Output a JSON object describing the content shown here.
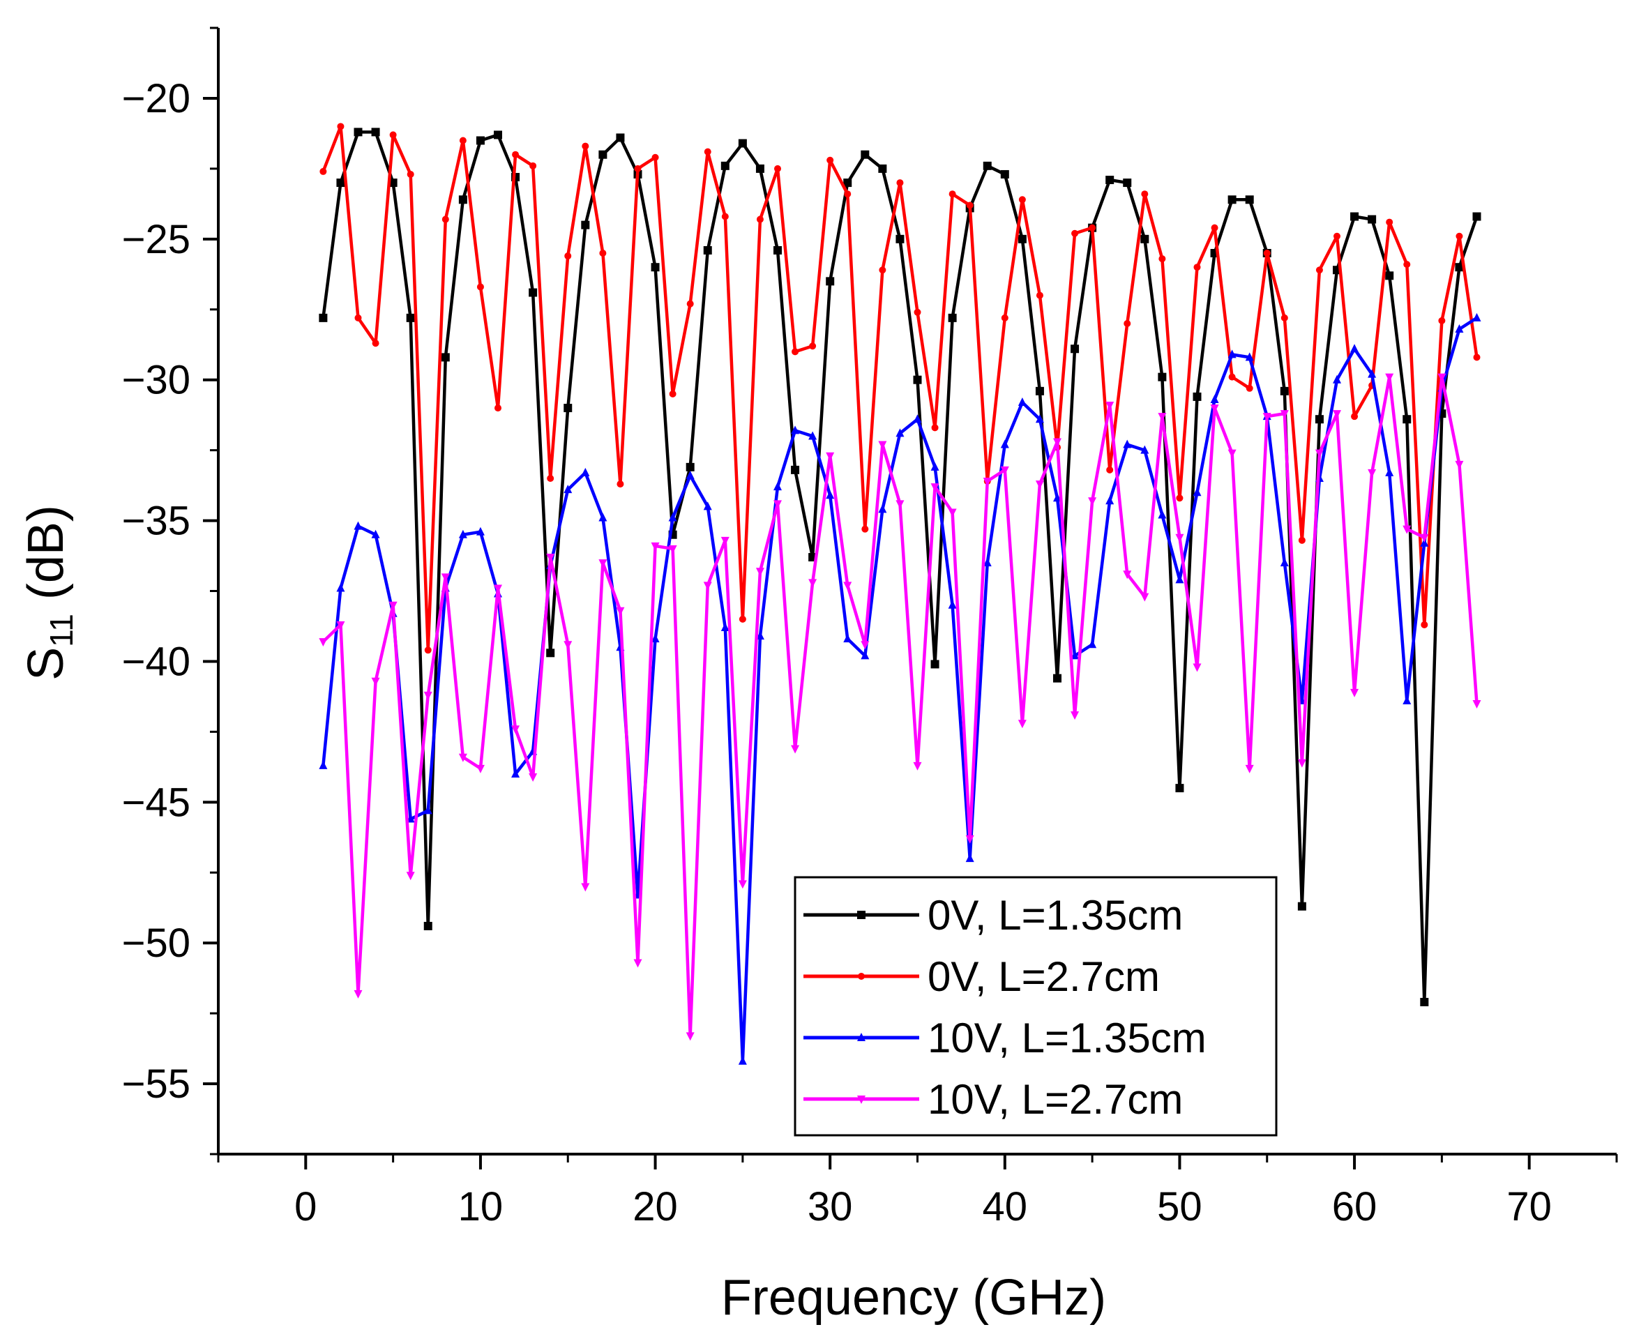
{
  "chart_data": {
    "type": "line",
    "title": "",
    "xlabel": "Frequency (GHz)",
    "ylabel_main": "S",
    "ylabel_sub": "11",
    "ylabel_unit": " (dB)",
    "xlim": [
      -5,
      75
    ],
    "ylim": [
      -57.5,
      -17.5
    ],
    "xticks": [
      0,
      10,
      20,
      30,
      40,
      50,
      60,
      70
    ],
    "yticks": [
      -20,
      -25,
      -30,
      -35,
      -40,
      -45,
      -50,
      -55
    ],
    "xtick_labels": [
      "0",
      "10",
      "20",
      "30",
      "40",
      "50",
      "60",
      "70"
    ],
    "ytick_labels": [
      "−20",
      "−25",
      "−30",
      "−35",
      "−40",
      "−45",
      "−50",
      "−55"
    ],
    "grid": false,
    "legend_position": "bottom-right",
    "x": [
      1,
      2,
      3,
      4,
      5,
      6,
      7,
      8,
      9,
      10,
      11,
      12,
      13,
      14,
      15,
      16,
      17,
      18,
      19,
      20,
      21,
      22,
      23,
      24,
      25,
      26,
      27,
      28,
      29,
      30,
      31,
      32,
      33,
      34,
      35,
      36,
      37,
      38,
      39,
      40,
      41,
      42,
      43,
      44,
      45,
      46,
      47,
      48,
      49,
      50,
      51,
      52,
      53,
      54,
      55,
      56,
      57,
      58,
      59,
      60,
      61,
      62,
      63,
      64,
      65,
      66,
      67
    ],
    "series": [
      {
        "name": "0V, L=1.35cm",
        "color": "#000000",
        "marker": "square",
        "values": [
          -27.8,
          -23.0,
          -21.2,
          -21.2,
          -23.0,
          -27.8,
          -49.4,
          -29.2,
          -23.6,
          -21.5,
          -21.3,
          -22.8,
          -26.9,
          -39.7,
          -31.0,
          -24.5,
          -22.0,
          -21.4,
          -22.7,
          -26.0,
          -35.5,
          -33.1,
          -25.4,
          -22.4,
          -21.6,
          -22.5,
          -25.4,
          -33.2,
          -36.3,
          -26.5,
          -23.0,
          -22.0,
          -22.5,
          -25.0,
          -30.0,
          -40.1,
          -27.8,
          -23.9,
          -22.4,
          -22.7,
          -25.0,
          -30.4,
          -40.6,
          -28.9,
          -24.6,
          -22.9,
          -23.0,
          -25.0,
          -29.9,
          -44.5,
          -30.6,
          -25.5,
          -23.6,
          -23.6,
          -25.5,
          -30.4,
          -48.7,
          -31.4,
          -26.1,
          -24.2,
          -24.3,
          -26.3,
          -31.4,
          -52.1,
          -31.2,
          -26.0,
          -24.2
        ]
      },
      {
        "name": "0V, L=2.7cm",
        "color": "#ff0000",
        "marker": "circle",
        "values": [
          -22.6,
          -21.0,
          -27.8,
          -28.7,
          -21.3,
          -22.7,
          -39.6,
          -24.3,
          -21.5,
          -26.7,
          -31.0,
          -22.0,
          -22.4,
          -33.5,
          -25.6,
          -21.7,
          -25.5,
          -33.7,
          -22.5,
          -22.1,
          -30.5,
          -27.3,
          -21.9,
          -24.2,
          -38.5,
          -24.3,
          -22.5,
          -29.0,
          -28.8,
          -22.2,
          -23.4,
          -35.3,
          -26.1,
          -23.0,
          -27.6,
          -31.7,
          -23.4,
          -23.8,
          -33.6,
          -27.8,
          -23.6,
          -27.0,
          -32.4,
          -24.8,
          -24.6,
          -33.2,
          -28.0,
          -23.4,
          -25.7,
          -34.2,
          -26.0,
          -24.6,
          -29.9,
          -30.3,
          -25.5,
          -27.8,
          -35.7,
          -26.1,
          -24.9,
          -31.3,
          -30.2,
          -24.4,
          -25.9,
          -38.7,
          -27.9,
          -24.9,
          -29.2
        ]
      },
      {
        "name": "10V, L=1.35cm",
        "color": "#0000ff",
        "marker": "triangle-up",
        "values": [
          -43.7,
          -37.4,
          -35.2,
          -35.5,
          -38.3,
          -45.6,
          -45.3,
          -37.4,
          -35.5,
          -35.4,
          -37.6,
          -44.0,
          -43.2,
          -36.6,
          -33.9,
          -33.3,
          -34.9,
          -39.5,
          -48.3,
          -39.2,
          -34.9,
          -33.4,
          -34.5,
          -38.8,
          -54.2,
          -39.1,
          -33.8,
          -31.8,
          -32.0,
          -34.1,
          -39.2,
          -39.8,
          -34.6,
          -31.9,
          -31.4,
          -33.1,
          -38.0,
          -47.0,
          -36.5,
          -32.3,
          -30.8,
          -31.4,
          -34.2,
          -39.8,
          -39.4,
          -34.3,
          -32.3,
          -32.5,
          -34.8,
          -37.1,
          -34.0,
          -30.7,
          -29.1,
          -29.2,
          -31.3,
          -36.5,
          -41.4,
          -33.5,
          -30.0,
          -28.9,
          -29.8,
          -33.3,
          -41.4,
          -35.8,
          -30.3,
          -28.2,
          -27.8
        ]
      },
      {
        "name": "10V, L=2.7cm",
        "color": "#ff00ff",
        "marker": "triangle-down",
        "values": [
          -39.3,
          -38.7,
          -51.8,
          -40.7,
          -38.0,
          -47.6,
          -41.2,
          -37.0,
          -43.4,
          -43.8,
          -37.4,
          -42.4,
          -44.1,
          -36.3,
          -39.4,
          -48.0,
          -36.5,
          -38.2,
          -50.7,
          -35.9,
          -36.0,
          -53.3,
          -37.3,
          -35.7,
          -47.9,
          -36.8,
          -34.4,
          -43.1,
          -37.2,
          -32.7,
          -37.3,
          -39.4,
          -32.3,
          -34.4,
          -43.7,
          -33.8,
          -34.7,
          -46.3,
          -33.6,
          -33.2,
          -42.2,
          -33.7,
          -32.2,
          -41.9,
          -34.3,
          -30.9,
          -36.9,
          -37.7,
          -31.3,
          -35.6,
          -40.2,
          -31.0,
          -32.6,
          -43.8,
          -31.3,
          -31.2,
          -43.6,
          -32.6,
          -31.2,
          -41.1,
          -33.3,
          -29.9,
          -35.3,
          -35.6,
          -29.9,
          -33.0,
          -41.5
        ]
      }
    ]
  }
}
